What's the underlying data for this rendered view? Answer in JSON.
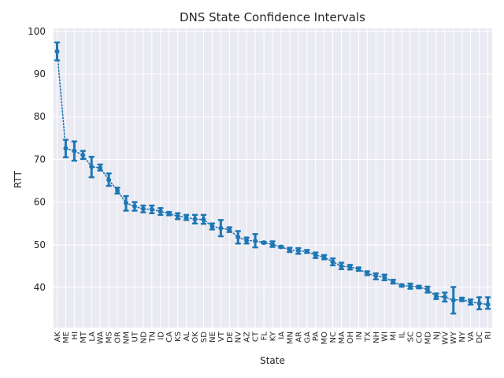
{
  "chart_data": {
    "type": "line",
    "title": "DNS State Confidence Intervals",
    "xlabel": "State",
    "ylabel": "RTT",
    "ylim": [
      30.6,
      100.7
    ],
    "yticks": [
      40,
      50,
      60,
      70,
      80,
      90,
      100
    ],
    "grid": true,
    "colors": {
      "series": "#1f77b4",
      "plot_bg": "#eaeaf2",
      "grid": "#ffffff"
    },
    "categories": [
      "AK",
      "ME",
      "HI",
      "MT",
      "LA",
      "WA",
      "MS",
      "OR",
      "NM",
      "UT",
      "ND",
      "TN",
      "ID",
      "CA",
      "KS",
      "AL",
      "OK",
      "SD",
      "NE",
      "VT",
      "DE",
      "NV",
      "AZ",
      "CT",
      "FL",
      "KY",
      "IA",
      "MN",
      "AR",
      "GA",
      "PA",
      "MO",
      "NC",
      "MA",
      "OH",
      "IN",
      "TX",
      "NH",
      "WI",
      "MI",
      "IL",
      "SC",
      "CO",
      "MD",
      "NJ",
      "WV",
      "WY",
      "NY",
      "VA",
      "DC",
      "RI"
    ],
    "series": [
      {
        "values": [
          95.3,
          72.6,
          72.0,
          71.0,
          68.3,
          68.0,
          65.2,
          62.7,
          59.8,
          59.0,
          58.4,
          58.3,
          57.8,
          57.3,
          56.7,
          56.4,
          56.0,
          55.9,
          54.3,
          53.9,
          53.5,
          51.8,
          51.0,
          50.9,
          50.5,
          50.1,
          49.5,
          48.8,
          48.6,
          48.4,
          47.6,
          47.1,
          46.0,
          45.0,
          44.8,
          44.3,
          43.3,
          42.7,
          42.4,
          41.3,
          40.5,
          40.3,
          40.1,
          39.5,
          37.9,
          37.8,
          37.0,
          37.2,
          36.6,
          36.3,
          36.0
        ],
        "lower": [
          93.2,
          70.5,
          69.7,
          70.1,
          65.8,
          67.4,
          63.8,
          62.0,
          58.0,
          58.0,
          57.6,
          57.4,
          57.0,
          56.9,
          56.0,
          55.8,
          55.0,
          54.9,
          53.6,
          52.0,
          53.0,
          50.3,
          50.3,
          49.4,
          50.3,
          49.5,
          49.3,
          48.3,
          47.9,
          48.1,
          46.9,
          46.6,
          45.2,
          44.3,
          44.2,
          43.9,
          42.9,
          41.9,
          41.7,
          40.9,
          40.2,
          39.7,
          39.8,
          38.8,
          37.3,
          36.7,
          33.9,
          36.8,
          36.0,
          34.9,
          35.0
        ],
        "upper": [
          97.4,
          74.6,
          74.2,
          72.0,
          70.6,
          68.8,
          66.7,
          63.4,
          61.4,
          60.0,
          59.2,
          59.2,
          58.6,
          57.7,
          57.4,
          57.0,
          57.0,
          57.0,
          55.0,
          55.8,
          54.1,
          53.2,
          51.7,
          52.5,
          50.7,
          50.8,
          49.7,
          49.3,
          49.2,
          48.8,
          48.2,
          47.6,
          46.8,
          45.8,
          45.3,
          44.7,
          43.8,
          43.3,
          43.0,
          41.8,
          40.7,
          40.9,
          40.4,
          40.2,
          38.6,
          38.8,
          40.1,
          37.6,
          37.2,
          37.7,
          37.7
        ]
      }
    ]
  }
}
